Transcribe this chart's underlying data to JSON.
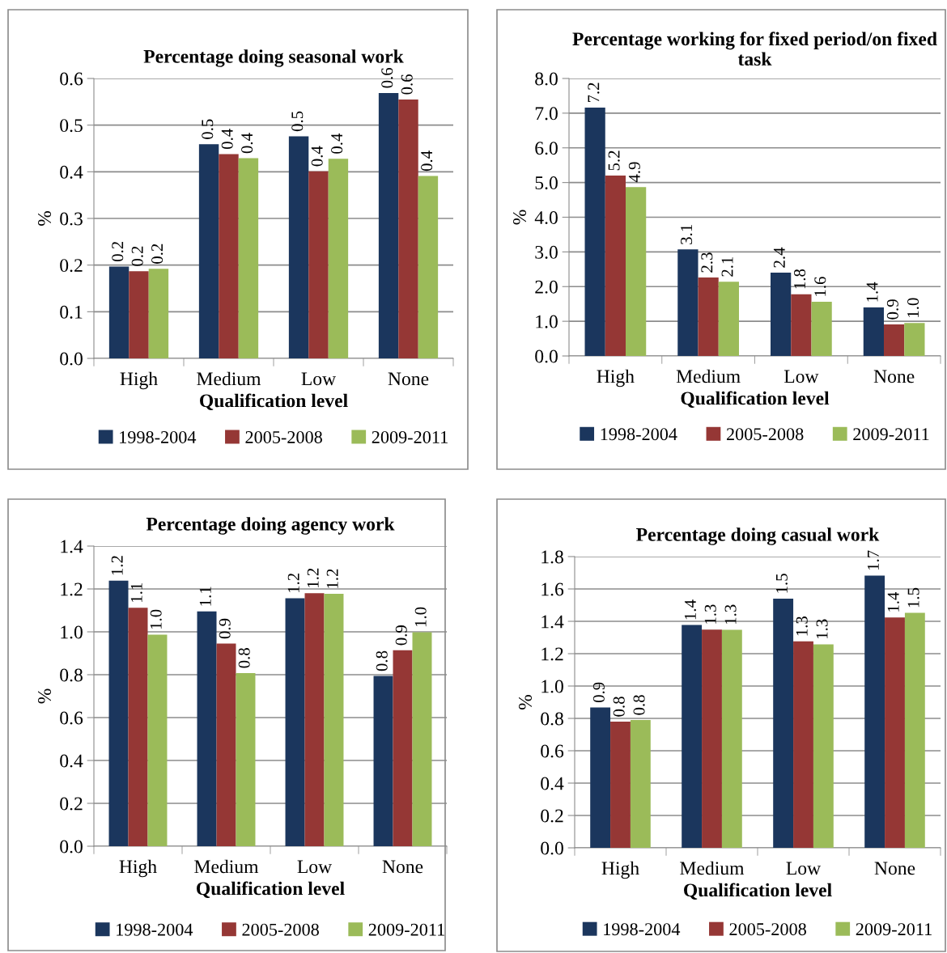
{
  "chart_data": [
    {
      "type": "bar",
      "title": "Percentage doing seasonal work",
      "xlabel": "Qualification level",
      "ylabel": "%",
      "categories": [
        "High",
        "Medium",
        "Low",
        "None"
      ],
      "ylim": [
        0,
        0.6
      ],
      "yticks": [
        "0.0",
        "0.1",
        "0.2",
        "0.3",
        "0.4",
        "0.5",
        "0.6"
      ],
      "grid": "y",
      "legend": "bottom",
      "series": [
        {
          "name": "1998-2004",
          "color": "#1b365d",
          "values": [
            0.197,
            0.459,
            0.476,
            0.569
          ],
          "value_labels": [
            "0.2",
            "0.5",
            "0.5",
            "0.6"
          ]
        },
        {
          "name": "2005-2008",
          "color": "#953735",
          "values": [
            0.187,
            0.438,
            0.401,
            0.555
          ],
          "value_labels": [
            "0.2",
            "0.4",
            "0.4",
            "0.6"
          ]
        },
        {
          "name": "2009-2011",
          "color": "#9bbb59",
          "values": [
            0.192,
            0.429,
            0.428,
            0.391
          ],
          "value_labels": [
            "0.2",
            "0.4",
            "0.4",
            "0.4"
          ]
        }
      ]
    },
    {
      "type": "bar",
      "title": "Percentage working for fixed period/on fixed task",
      "xlabel": "Qualification level",
      "ylabel": "%",
      "categories": [
        "High",
        "Medium",
        "Low",
        "None"
      ],
      "ylim": [
        0,
        8
      ],
      "yticks": [
        "0.0",
        "1.0",
        "2.0",
        "3.0",
        "4.0",
        "5.0",
        "6.0",
        "7.0",
        "8.0"
      ],
      "grid": "y",
      "legend": "bottom",
      "series": [
        {
          "name": "1998-2004",
          "color": "#1b365d",
          "values": [
            7.16,
            3.07,
            2.4,
            1.4
          ],
          "value_labels": [
            "7.2",
            "3.1",
            "2.4",
            "1.4"
          ]
        },
        {
          "name": "2005-2008",
          "color": "#953735",
          "values": [
            5.2,
            2.26,
            1.78,
            0.91
          ],
          "value_labels": [
            "5.2",
            "2.3",
            "1.8",
            "0.9"
          ]
        },
        {
          "name": "2009-2011",
          "color": "#9bbb59",
          "values": [
            4.87,
            2.14,
            1.56,
            0.95
          ],
          "value_labels": [
            "4.9",
            "2.1",
            "1.6",
            "1.0"
          ]
        }
      ]
    },
    {
      "type": "bar",
      "title": "Percentage doing agency work",
      "xlabel": "Qualification level",
      "ylabel": "%",
      "categories": [
        "High",
        "Medium",
        "Low",
        "None"
      ],
      "ylim": [
        0,
        1.4
      ],
      "yticks": [
        "0.0",
        "0.2",
        "0.4",
        "0.6",
        "0.8",
        "1.0",
        "1.2",
        "1.4"
      ],
      "grid": "y",
      "legend": "bottom",
      "series": [
        {
          "name": "1998-2004",
          "color": "#1b365d",
          "values": [
            1.239,
            1.095,
            1.157,
            0.794
          ],
          "value_labels": [
            "1.2",
            "1.1",
            "1.2",
            "0.8"
          ]
        },
        {
          "name": "2005-2008",
          "color": "#953735",
          "values": [
            1.112,
            0.945,
            1.18,
            0.914
          ],
          "value_labels": [
            "1.1",
            "0.9",
            "1.2",
            "0.9"
          ]
        },
        {
          "name": "2009-2011",
          "color": "#9bbb59",
          "values": [
            0.987,
            0.808,
            1.177,
            0.998
          ],
          "value_labels": [
            "1.0",
            "0.8",
            "1.2",
            "1.0"
          ]
        }
      ]
    },
    {
      "type": "bar",
      "title": "Percentage doing casual work",
      "xlabel": "Qualification level",
      "ylabel": "%",
      "categories": [
        "High",
        "Medium",
        "Low",
        "None"
      ],
      "ylim": [
        0,
        1.8
      ],
      "yticks": [
        "0.0",
        "0.2",
        "0.4",
        "0.6",
        "0.8",
        "1.0",
        "1.2",
        "1.4",
        "1.6",
        "1.8"
      ],
      "grid": "y",
      "legend": "bottom",
      "series": [
        {
          "name": "1998-2004",
          "color": "#1b365d",
          "values": [
            0.868,
            1.377,
            1.54,
            1.683
          ],
          "value_labels": [
            "0.9",
            "1.4",
            "1.5",
            "1.7"
          ]
        },
        {
          "name": "2005-2008",
          "color": "#953735",
          "values": [
            0.78,
            1.349,
            1.276,
            1.424
          ],
          "value_labels": [
            "0.8",
            "1.3",
            "1.3",
            "1.4"
          ]
        },
        {
          "name": "2009-2011",
          "color": "#9bbb59",
          "values": [
            0.79,
            1.348,
            1.258,
            1.452
          ],
          "value_labels": [
            "0.8",
            "1.3",
            "1.3",
            "1.5"
          ]
        }
      ]
    }
  ]
}
